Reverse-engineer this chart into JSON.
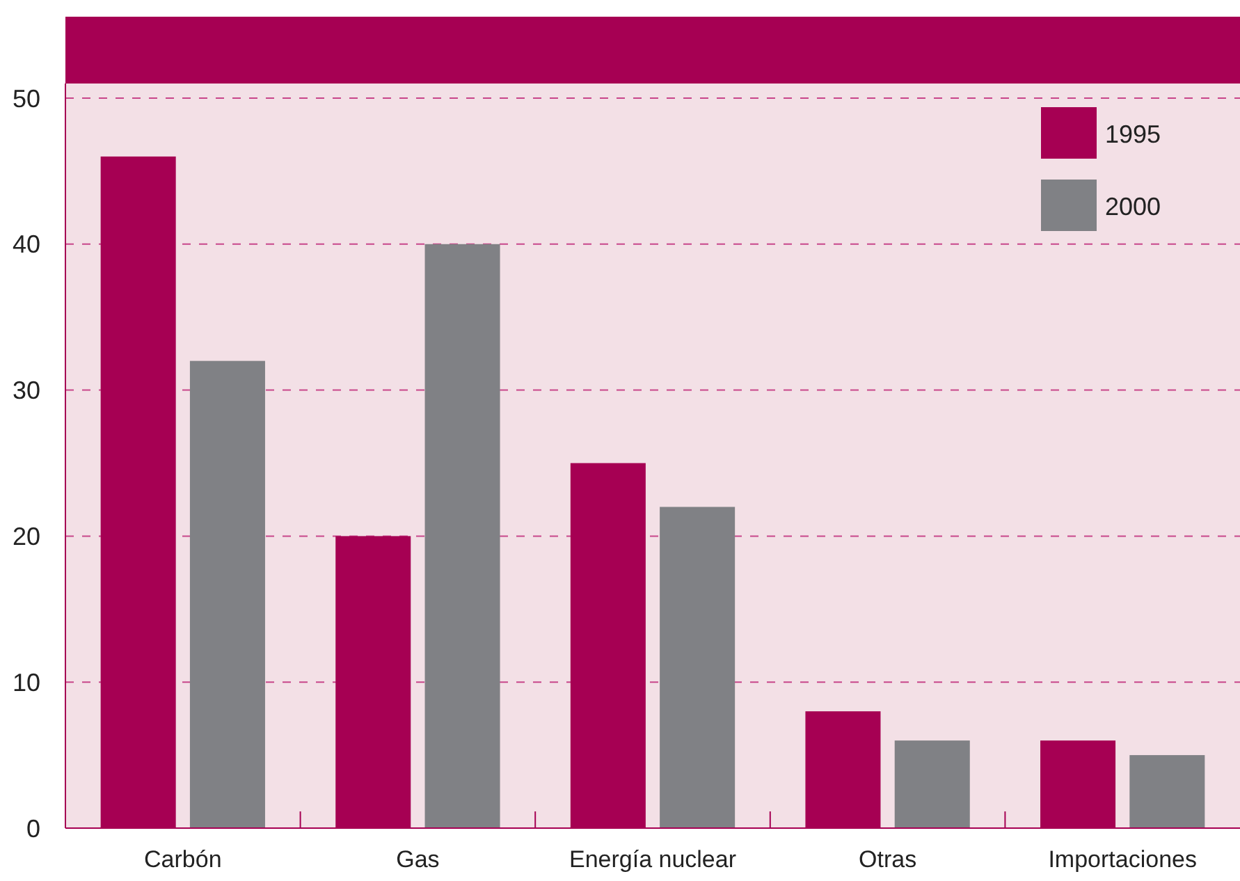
{
  "chart_data": {
    "type": "bar",
    "categories": [
      "Carbón",
      "Gas",
      "Energía nuclear",
      "Otras",
      "Importaciones"
    ],
    "series": [
      {
        "name": "1995",
        "color": "#a60053",
        "values": [
          46,
          20,
          25,
          8,
          6
        ]
      },
      {
        "name": "2000",
        "color": "#808185",
        "values": [
          32,
          40,
          22,
          6,
          5
        ]
      }
    ],
    "ylim": [
      0,
      51
    ],
    "yticks": [
      0,
      10,
      20,
      30,
      40,
      50
    ],
    "grid": "y",
    "legend": "top right"
  }
}
